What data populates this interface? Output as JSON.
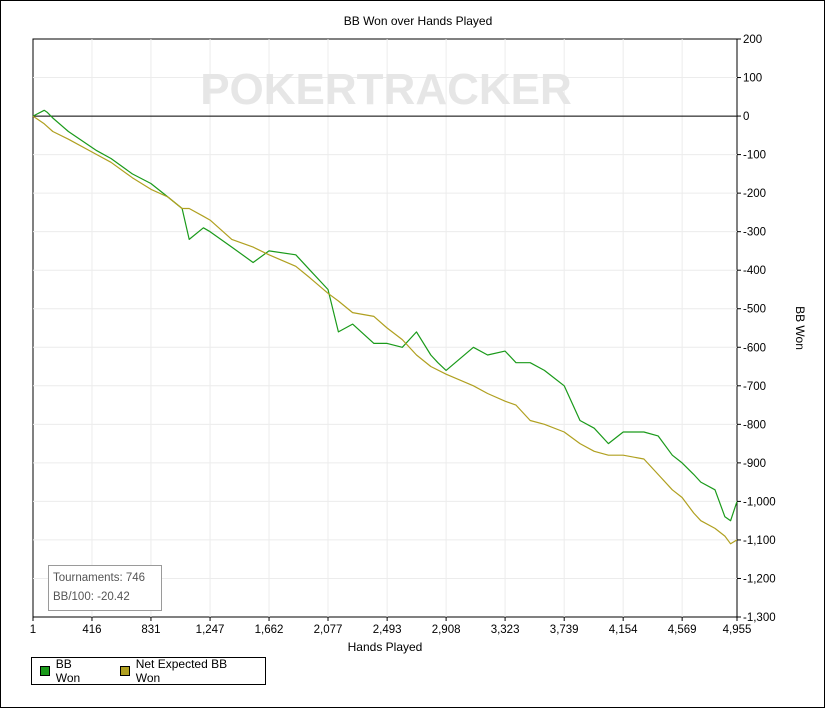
{
  "chart_data": {
    "type": "line",
    "title": "BB Won over Hands Played",
    "xlabel": "Hands Played",
    "ylabel": "BB Won",
    "xlim": [
      1,
      4955
    ],
    "ylim": [
      -1300,
      200
    ],
    "x_ticks": [
      1,
      416,
      831,
      1247,
      1662,
      2077,
      2493,
      2908,
      3323,
      3739,
      4154,
      4569,
      4955
    ],
    "x_tick_labels": [
      "1",
      "416",
      "831",
      "1,247",
      "1,662",
      "2,077",
      "2,493",
      "2,908",
      "3,323",
      "3,739",
      "4,154",
      "4,569",
      "4,955"
    ],
    "y_ticks": [
      200,
      100,
      0,
      -100,
      -200,
      -300,
      -400,
      -500,
      -600,
      -700,
      -800,
      -900,
      -1000,
      -1100,
      -1200,
      -1300
    ],
    "y_tick_labels": [
      "200",
      "100",
      "0",
      "-100",
      "-200",
      "-300",
      "-400",
      "-500",
      "-600",
      "-700",
      "-800",
      "-900",
      "-1,000",
      "-1,100",
      "-1,200",
      "-1,300"
    ],
    "y_axis_side": "right",
    "grid": true,
    "legend_position": "bottom-left",
    "watermark": "POKERTRACKER",
    "series": [
      {
        "name": "BB Won",
        "color": "#1a9a1a",
        "x": [
          1,
          80,
          100,
          140,
          250,
          450,
          550,
          700,
          831,
          950,
          1050,
          1100,
          1200,
          1247,
          1400,
          1550,
          1662,
          1850,
          1950,
          2077,
          2150,
          2250,
          2400,
          2493,
          2600,
          2700,
          2800,
          2850,
          2908,
          3100,
          3200,
          3323,
          3400,
          3500,
          3600,
          3739,
          3850,
          3950,
          4050,
          4154,
          4300,
          4400,
          4500,
          4569,
          4650,
          4700,
          4800,
          4870,
          4910,
          4955
        ],
        "y": [
          0,
          15,
          10,
          -5,
          -40,
          -90,
          -110,
          -150,
          -175,
          -210,
          -240,
          -320,
          -290,
          -300,
          -340,
          -380,
          -350,
          -360,
          -400,
          -450,
          -560,
          -540,
          -590,
          -590,
          -600,
          -560,
          -620,
          -640,
          -660,
          -600,
          -620,
          -610,
          -640,
          -640,
          -660,
          -700,
          -790,
          -810,
          -850,
          -820,
          -820,
          -830,
          -880,
          -900,
          -930,
          -950,
          -970,
          -1040,
          -1050,
          -1000
        ]
      },
      {
        "name": "Net Expected BB Won",
        "color": "#b0a020",
        "x": [
          1,
          80,
          140,
          250,
          450,
          550,
          700,
          831,
          950,
          1050,
          1100,
          1200,
          1247,
          1400,
          1550,
          1662,
          1850,
          1950,
          2077,
          2150,
          2250,
          2400,
          2493,
          2600,
          2700,
          2800,
          2908,
          3100,
          3200,
          3323,
          3400,
          3500,
          3600,
          3739,
          3850,
          3950,
          4050,
          4154,
          4300,
          4400,
          4500,
          4569,
          4650,
          4700,
          4800,
          4870,
          4910,
          4955
        ],
        "y": [
          0,
          -20,
          -40,
          -60,
          -100,
          -120,
          -160,
          -190,
          -210,
          -240,
          -240,
          -260,
          -270,
          -320,
          -340,
          -360,
          -390,
          -420,
          -460,
          -480,
          -510,
          -520,
          -550,
          -580,
          -620,
          -650,
          -670,
          -700,
          -720,
          -740,
          -750,
          -790,
          -800,
          -820,
          -850,
          -870,
          -880,
          -880,
          -890,
          -930,
          -970,
          -990,
          -1030,
          -1050,
          -1070,
          -1090,
          -1110,
          -1100
        ]
      }
    ]
  },
  "stats": {
    "tournaments": "Tournaments: 746",
    "bb100": "BB/100: -20.42"
  },
  "legend": {
    "items": [
      {
        "label": "BB Won",
        "color": "#1a9a1a"
      },
      {
        "label": "Net Expected BB Won",
        "color": "#b0a020"
      }
    ]
  }
}
